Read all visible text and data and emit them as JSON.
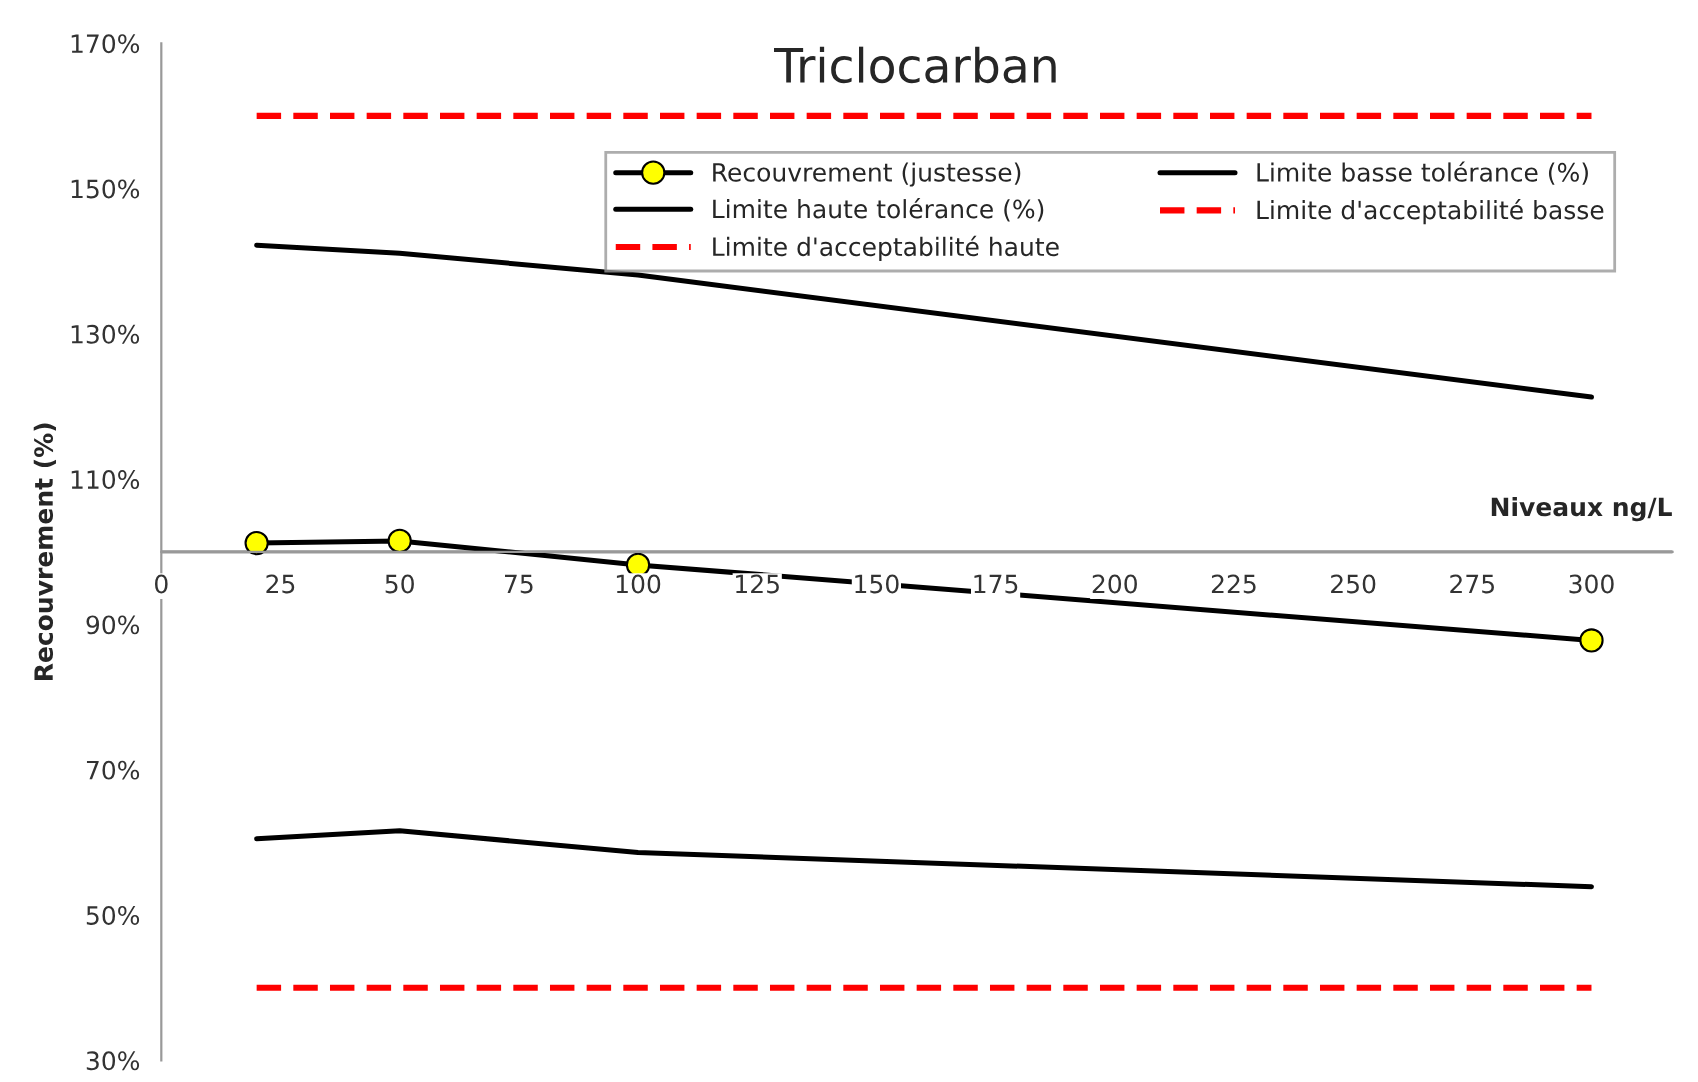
{
  "chart_data": {
    "type": "line",
    "title": "Triclocarban",
    "xlabel": "Niveaux ng/L",
    "ylabel": "Recouvrement (%)",
    "x": [
      20,
      50,
      100,
      300
    ],
    "series": [
      {
        "name": "Recouvrement (justesse)",
        "color": "#000000",
        "marker": "circle",
        "line_style": "solid",
        "values": [
          101.2,
          101.5,
          98.2,
          87.8
        ]
      },
      {
        "name": "Limite haute tolérance (%)",
        "color": "#000000",
        "marker": "none",
        "line_style": "solid",
        "values": [
          142.2,
          141.1,
          138.1,
          121.3
        ]
      },
      {
        "name": "Limite d'acceptabilité haute",
        "color": "#ff0000",
        "marker": "none",
        "line_style": "dashed",
        "values": [
          160,
          160,
          160,
          160
        ]
      },
      {
        "name": "Limite basse tolérance (%)",
        "color": "#000000",
        "marker": "none",
        "line_style": "solid",
        "values": [
          60.5,
          61.6,
          58.6,
          53.9
        ]
      },
      {
        "name": "Limite d'acceptabilité basse",
        "color": "#ff0000",
        "marker": "none",
        "line_style": "dashed",
        "values": [
          40,
          40,
          40,
          40
        ]
      }
    ],
    "xlim": [
      0,
      317
    ],
    "xticks": [
      0,
      25,
      50,
      75,
      100,
      125,
      150,
      175,
      200,
      225,
      250,
      275,
      300
    ],
    "ylim": [
      30,
      170
    ],
    "yticks": [
      {
        "value": 30,
        "label": "30%"
      },
      {
        "value": 50,
        "label": "50%"
      },
      {
        "value": 70,
        "label": "70%"
      },
      {
        "value": 90,
        "label": "90%"
      },
      {
        "value": 110,
        "label": "110%"
      },
      {
        "value": 130,
        "label": "130%"
      },
      {
        "value": 150,
        "label": "150%"
      },
      {
        "value": 170,
        "label": "170%"
      }
    ],
    "ref_lines": [
      {
        "axis": "y",
        "value": 100,
        "color": "#999999"
      }
    ],
    "grid": false,
    "legend": "top right"
  }
}
